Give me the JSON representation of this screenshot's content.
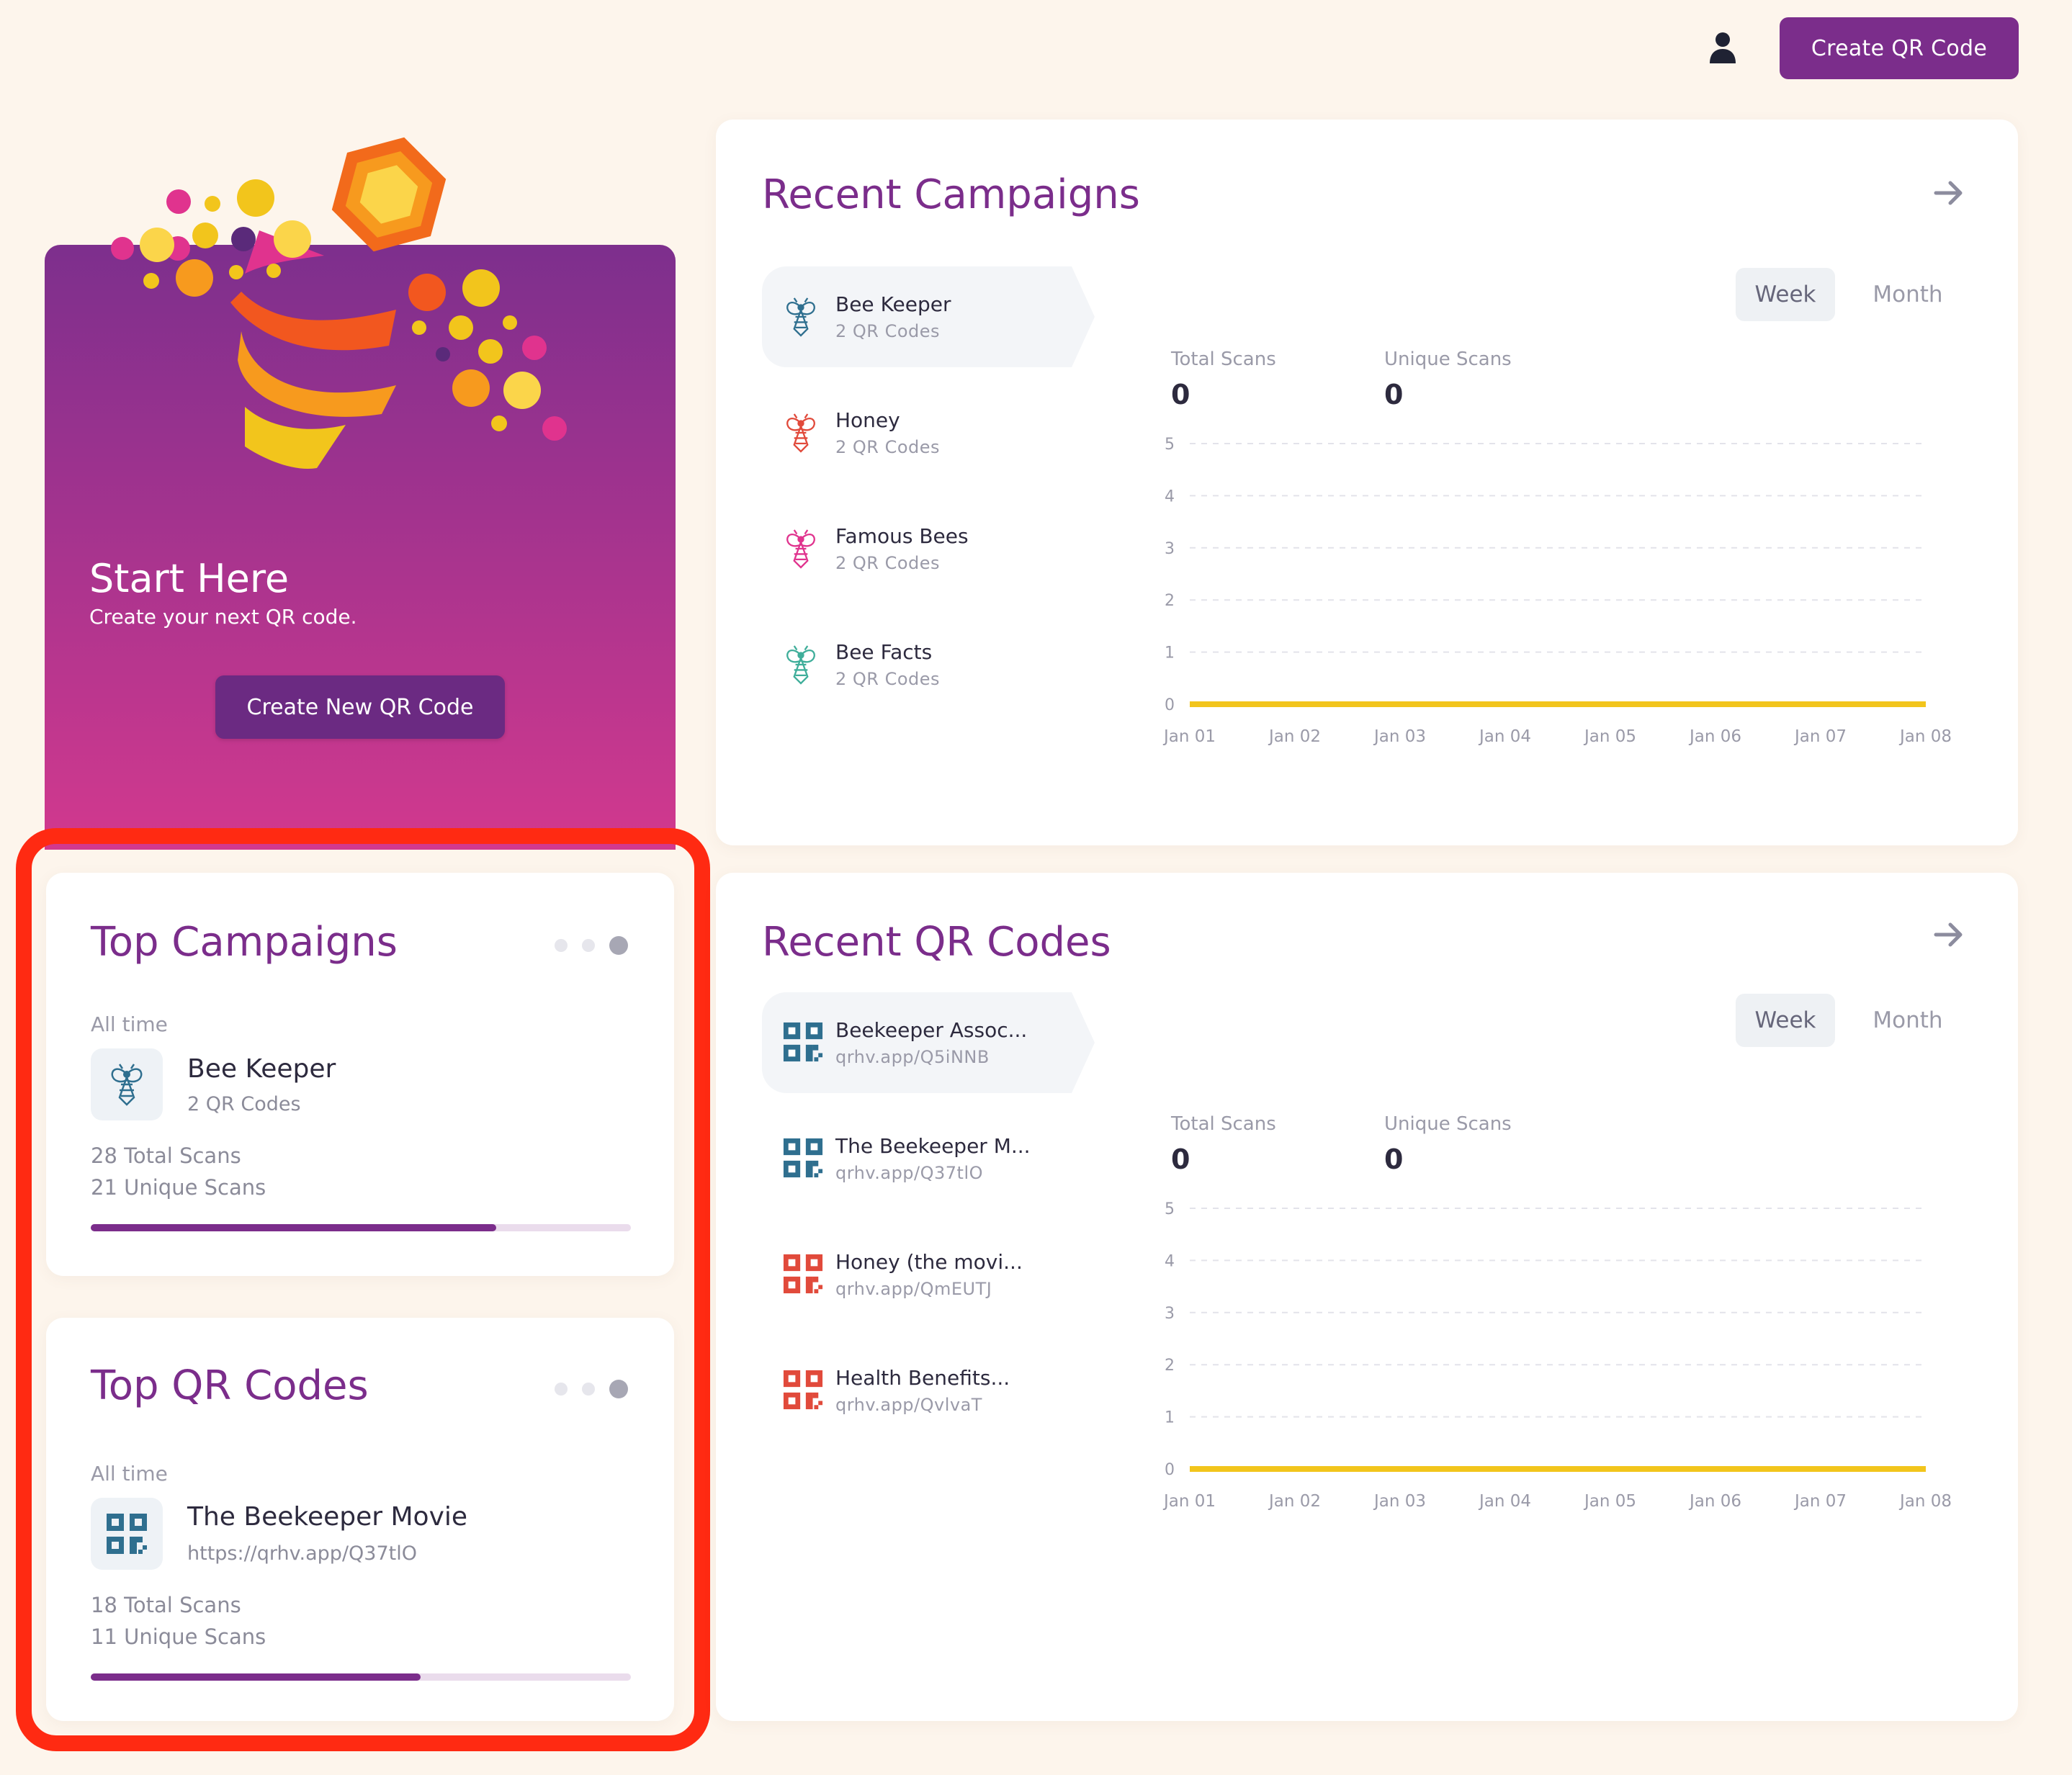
{
  "header": {
    "create_button": "Create QR Code",
    "user_icon": "user-icon"
  },
  "start": {
    "title": "Start Here",
    "subtitle": "Create your next QR code.",
    "button": "Create New QR Code"
  },
  "top_campaigns": {
    "title": "Top Campaigns",
    "period": "All time",
    "name": "Bee Keeper",
    "sub": "2 QR Codes",
    "total": "28 Total Scans",
    "unique": "21 Unique Scans",
    "progress": 0.75
  },
  "top_qr": {
    "title": "Top QR Codes",
    "period": "All time",
    "name": "The Beekeeper Movie",
    "sub": "https://qrhv.app/Q37tlO",
    "total": "18 Total Scans",
    "unique": "11 Unique Scans",
    "progress": 0.61
  },
  "recent_campaigns": {
    "title": "Recent Campaigns",
    "items": [
      {
        "name": "Bee Keeper",
        "sub": "2 QR Codes",
        "icon_color": "#2f6f8f"
      },
      {
        "name": "Honey",
        "sub": "2 QR Codes",
        "icon_color": "#e14a3b"
      },
      {
        "name": "Famous Bees",
        "sub": "2 QR Codes",
        "icon_color": "#e0338e"
      },
      {
        "name": "Bee Facts",
        "sub": "2 QR Codes",
        "icon_color": "#3fae9a"
      }
    ],
    "week": "Week",
    "month": "Month",
    "total_label": "Total Scans",
    "total_value": "0",
    "unique_label": "Unique Scans",
    "unique_value": "0"
  },
  "recent_qr": {
    "title": "Recent QR Codes",
    "items": [
      {
        "name": "Beekeeper Assoc...",
        "sub": "qrhv.app/Q5iNNB",
        "icon_color": "#2f6f8f"
      },
      {
        "name": "The Beekeeper M...",
        "sub": "qrhv.app/Q37tlO",
        "icon_color": "#2f6f8f"
      },
      {
        "name": "Honey (the movi...",
        "sub": "qrhv.app/QmEUTJ",
        "icon_color": "#e14a3b"
      },
      {
        "name": "Health Benefits...",
        "sub": "qrhv.app/QvlvaT",
        "icon_color": "#e14a3b"
      }
    ],
    "week": "Week",
    "month": "Month",
    "total_label": "Total Scans",
    "total_value": "0",
    "unique_label": "Unique Scans",
    "unique_value": "0"
  },
  "chart_data": [
    {
      "type": "line",
      "x": [
        "Jan 01",
        "Jan 02",
        "Jan 03",
        "Jan 04",
        "Jan 05",
        "Jan 06",
        "Jan 07",
        "Jan 08"
      ],
      "series": [
        {
          "values": [
            0,
            0,
            0,
            0,
            0,
            0,
            0,
            0
          ]
        }
      ],
      "yticks": [
        "0",
        "1",
        "2",
        "3",
        "4",
        "5"
      ],
      "ylim": [
        0,
        5
      ],
      "line_color": "#f2c51c",
      "grid": true
    },
    {
      "type": "line",
      "x": [
        "Jan 01",
        "Jan 02",
        "Jan 03",
        "Jan 04",
        "Jan 05",
        "Jan 06",
        "Jan 07",
        "Jan 08"
      ],
      "series": [
        {
          "values": [
            0,
            0,
            0,
            0,
            0,
            0,
            0,
            0
          ]
        }
      ],
      "yticks": [
        "0",
        "1",
        "2",
        "3",
        "4",
        "5"
      ],
      "ylim": [
        0,
        5
      ],
      "line_color": "#f2c51c",
      "grid": true
    }
  ],
  "colors": {
    "brand": "#7b2d8b",
    "background": "#fdf5ec",
    "highlight": "#ff2a12"
  }
}
